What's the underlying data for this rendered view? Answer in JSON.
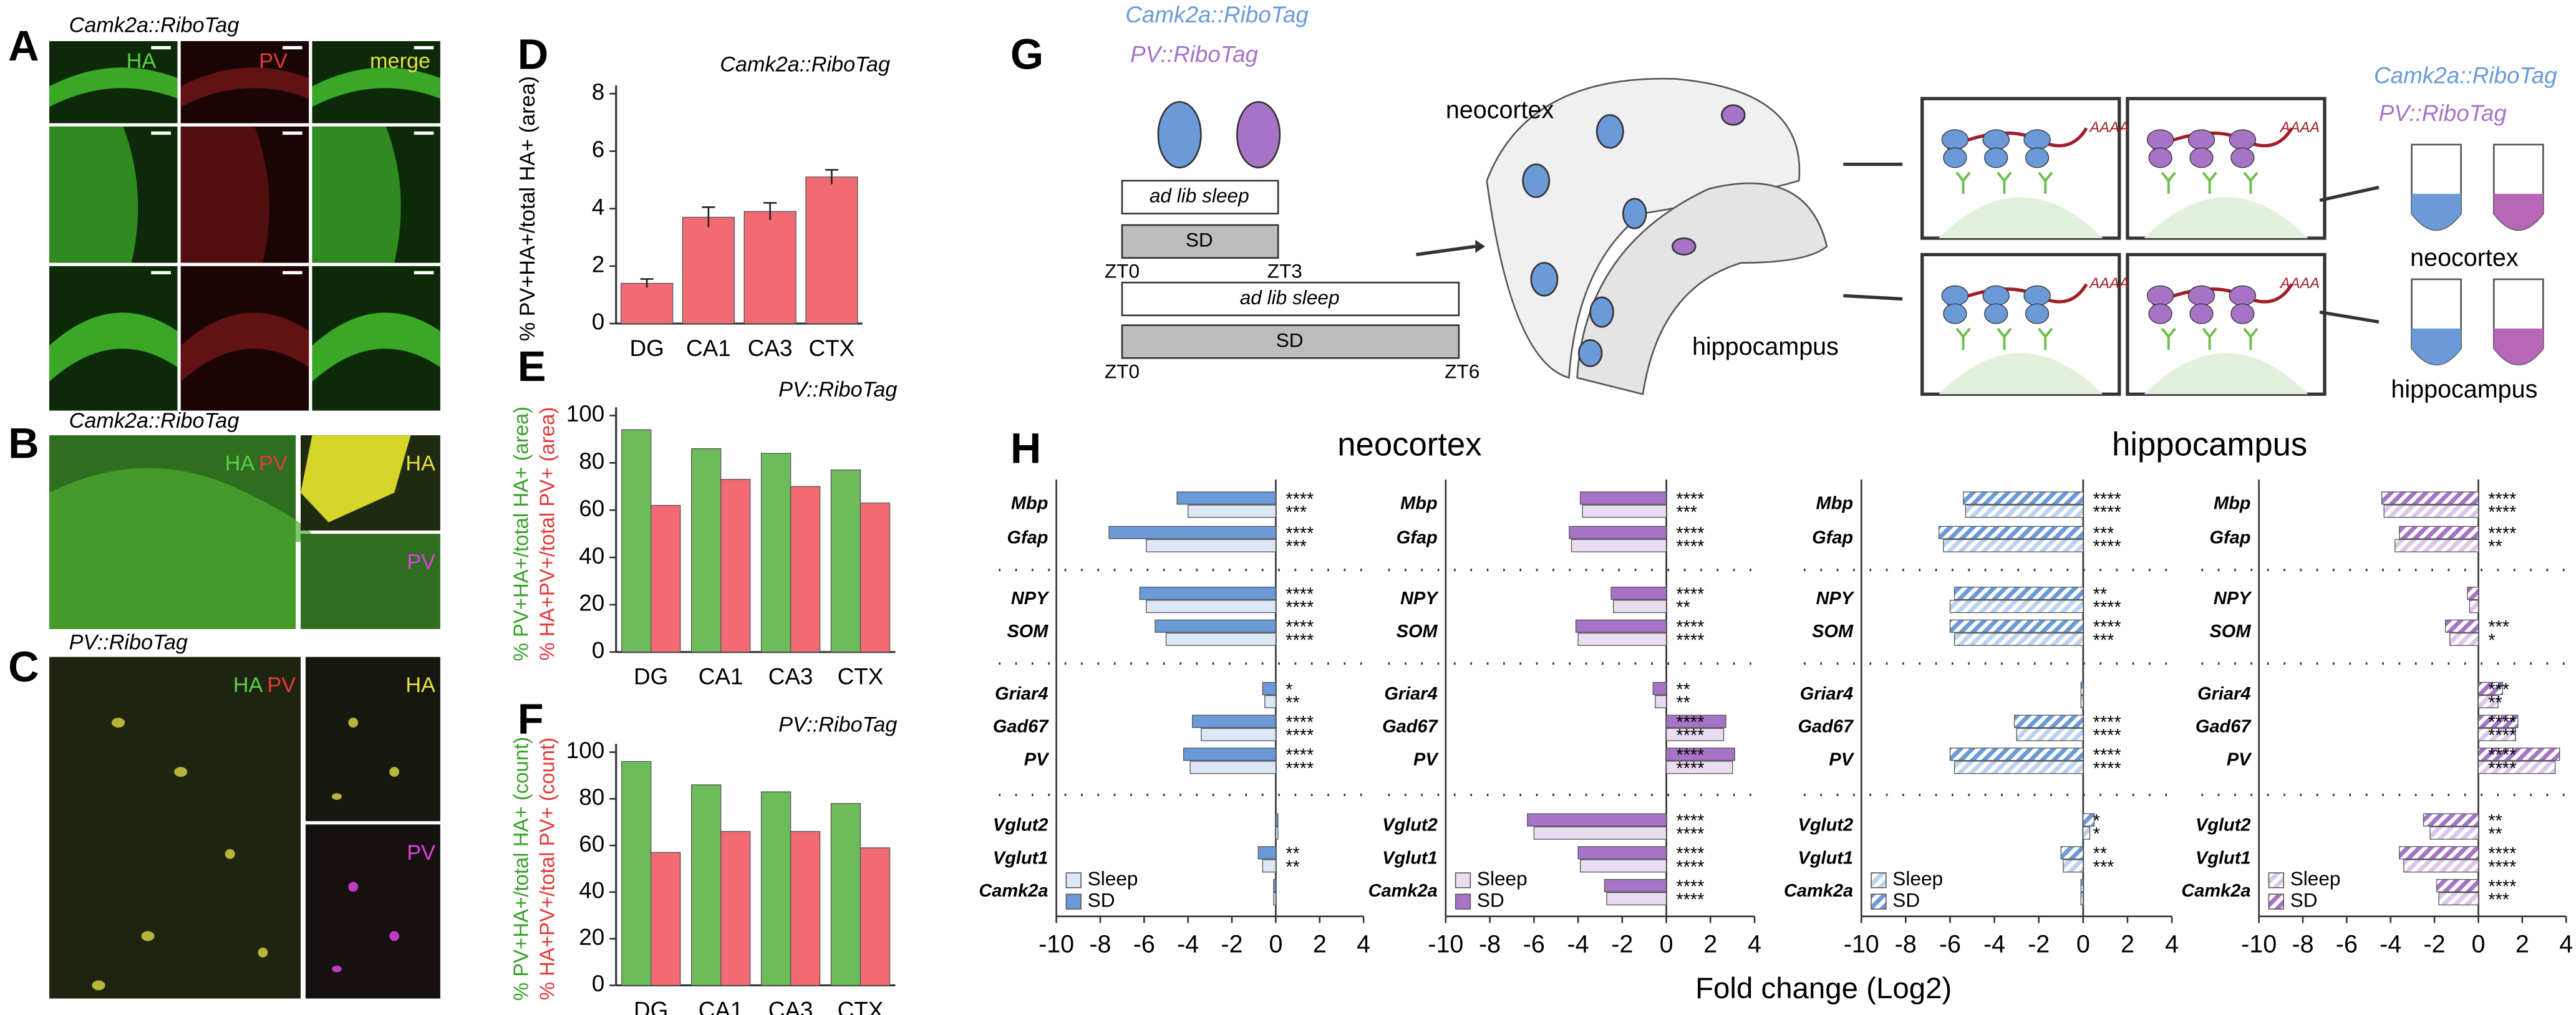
{
  "panel_letters": [
    "A",
    "B",
    "C",
    "D",
    "E",
    "F",
    "G",
    "H"
  ],
  "panel_a": {
    "title": "Camk2a::RiboTag",
    "channels": [
      "HA",
      "PV",
      "merge"
    ]
  },
  "panel_b": {
    "title": "Camk2a::RiboTag",
    "merge_labels": [
      "HA",
      "PV"
    ],
    "inset_labels": [
      "HA",
      "PV"
    ]
  },
  "panel_c": {
    "title": "PV::RiboTag",
    "merge_labels": [
      "HA",
      "PV"
    ],
    "inset_labels": [
      "HA",
      "PV"
    ]
  },
  "panel_g": {
    "mouse_labels": [
      "Camk2a::RiboTag",
      "PV::RiboTag"
    ],
    "timeline_short": {
      "sleep": "ad lib sleep",
      "sd": "SD",
      "start": "ZT0",
      "end": "ZT3"
    },
    "timeline_long": {
      "sleep": "ad lib sleep",
      "sd": "SD",
      "start": "ZT0",
      "end": "ZT6"
    },
    "brain_labels": [
      "neocortex",
      "hippocampus"
    ],
    "poly_a": [
      "AAAA",
      "AAAA",
      "AAAA",
      "AAAA"
    ],
    "tube_legend": [
      "Camk2a::RiboTag",
      "PV::RiboTag"
    ],
    "tube_labels": [
      "neocortex",
      "hippocampus"
    ]
  },
  "panel_h": {
    "x_label": "Fold change (Log2)",
    "region_titles": [
      "neocortex",
      "hippocampus"
    ]
  },
  "chart_data": [
    {
      "type": "bar",
      "title": "Camk2a::RiboTag",
      "y_label": "% PV+HA+/total HA+ (area)",
      "categories": [
        "DG",
        "CA1",
        "CA3",
        "CTX"
      ],
      "values": [
        1.4,
        3.7,
        3.9,
        5.1
      ],
      "errors": [
        0.15,
        0.35,
        0.3,
        0.25
      ],
      "color": "#f26b73",
      "ylim": [
        0,
        8
      ],
      "yticks": [
        0,
        2,
        4,
        6,
        8
      ]
    },
    {
      "type": "grouped_bar",
      "title": "PV::RiboTag",
      "categories": [
        "DG",
        "CA1",
        "CA3",
        "CTX"
      ],
      "series": [
        {
          "name": "% PV+HA+/total HA+ (area)",
          "color": "#6dbb5a",
          "values": [
            94,
            86,
            84,
            77
          ]
        },
        {
          "name": "% HA+PV+/total PV+ (area)",
          "color": "#f26b73",
          "values": [
            62,
            73,
            70,
            63
          ]
        }
      ],
      "ylim": [
        0,
        100
      ],
      "yticks": [
        0,
        20,
        40,
        60,
        80,
        100
      ]
    },
    {
      "type": "grouped_bar",
      "title": "PV::RiboTag",
      "categories": [
        "DG",
        "CA1",
        "CA3",
        "CTX"
      ],
      "series": [
        {
          "name": "% PV+HA+/total HA+ (count)",
          "color": "#6dbb5a",
          "values": [
            96,
            86,
            83,
            78
          ]
        },
        {
          "name": "% HA+PV+/total PV+ (count)",
          "color": "#f26b73",
          "values": [
            57,
            66,
            66,
            59
          ]
        }
      ],
      "ylim": [
        0,
        100
      ],
      "yticks": [
        0,
        20,
        40,
        60,
        80,
        100
      ]
    },
    {
      "type": "hbar",
      "hatch": false,
      "categories": [
        "Mbp",
        "Gfap",
        "NPY",
        "SOM",
        "Griar4",
        "Gad67",
        "PV",
        "Vglut2",
        "Vglut1",
        "Camk2a"
      ],
      "series": [
        {
          "name": "Sleep",
          "color": "#dce8f7",
          "values": [
            -4.0,
            -5.9,
            -5.9,
            -5.0,
            -0.5,
            -3.4,
            -3.9,
            0.1,
            -0.6,
            -0.1
          ],
          "significance": [
            "***",
            "***",
            "****",
            "****",
            "**",
            "****",
            "****",
            null,
            "**",
            null
          ]
        },
        {
          "name": "SD",
          "color": "#6a9ad8",
          "values": [
            -4.5,
            -7.6,
            -6.2,
            -5.5,
            -0.6,
            -3.8,
            -4.2,
            0.1,
            -0.8,
            -0.1
          ],
          "significance": [
            "****",
            "****",
            "****",
            "****",
            "*",
            "****",
            "****",
            null,
            "**",
            null
          ]
        }
      ],
      "xlim": [
        -10,
        4
      ],
      "xticks": [
        -10,
        -8,
        -6,
        -4,
        -2,
        0,
        2,
        4
      ]
    },
    {
      "type": "hbar",
      "hatch": false,
      "categories": [
        "Mbp",
        "Gfap",
        "NPY",
        "SOM",
        "Griar4",
        "Gad67",
        "PV",
        "Vglut2",
        "Vglut1",
        "Camk2a"
      ],
      "series": [
        {
          "name": "Sleep",
          "color": "#eadcf2",
          "values": [
            -3.8,
            -4.3,
            -2.4,
            -4.0,
            -0.5,
            2.6,
            3.0,
            -6.0,
            -3.9,
            -2.7
          ],
          "significance": [
            "***",
            "****",
            "**",
            "****",
            "**",
            "****",
            "****",
            "****",
            "****",
            "****"
          ]
        },
        {
          "name": "SD",
          "color": "#a673c6",
          "values": [
            -3.9,
            -4.4,
            -2.5,
            -4.1,
            -0.6,
            2.7,
            3.1,
            -6.3,
            -4.0,
            -2.8
          ],
          "significance": [
            "****",
            "****",
            "****",
            "****",
            "**",
            "****",
            "****",
            "****",
            "****",
            "****"
          ]
        }
      ],
      "xlim": [
        -10,
        4
      ],
      "xticks": [
        -10,
        -8,
        -6,
        -4,
        -2,
        0,
        2,
        4
      ]
    },
    {
      "type": "hbar",
      "hatch": true,
      "categories": [
        "Mbp",
        "Gfap",
        "NPY",
        "SOM",
        "Griar4",
        "Gad67",
        "PV",
        "Vglut2",
        "Vglut1",
        "Camk2a"
      ],
      "series": [
        {
          "name": "Sleep",
          "color": "#bcd2ef",
          "values": [
            -5.3,
            -6.3,
            -6.0,
            -5.8,
            -0.1,
            -3.0,
            -5.8,
            0.3,
            -0.9,
            -0.1
          ],
          "significance": [
            "****",
            "****",
            "****",
            "***",
            null,
            "****",
            "****",
            "*",
            "***",
            null
          ]
        },
        {
          "name": "SD",
          "color": "#6a9ad8",
          "values": [
            -5.4,
            -6.5,
            -5.8,
            -6.0,
            -0.1,
            -3.1,
            -6.0,
            0.5,
            -1.0,
            -0.1
          ],
          "significance": [
            "****",
            "***",
            "**",
            "****",
            null,
            "****",
            "****",
            "*",
            "**",
            null
          ]
        }
      ],
      "xlim": [
        -10,
        4
      ],
      "xticks": [
        -10,
        -8,
        -6,
        -4,
        -2,
        0,
        2,
        4
      ]
    },
    {
      "type": "hbar",
      "hatch": true,
      "categories": [
        "Mbp",
        "Gfap",
        "NPY",
        "SOM",
        "Griar4",
        "Gad67",
        "PV",
        "Vglut2",
        "Vglut1",
        "Camk2a"
      ],
      "series": [
        {
          "name": "Sleep",
          "color": "#dcc6ea",
          "values": [
            -4.3,
            -3.8,
            -0.4,
            -1.3,
            0.9,
            1.7,
            3.5,
            -2.2,
            -3.4,
            -1.8
          ],
          "significance": [
            "****",
            "**",
            null,
            "*",
            "**",
            "****",
            "****",
            "**",
            "****",
            "***"
          ]
        },
        {
          "name": "SD",
          "color": "#a673c6",
          "values": [
            -4.4,
            -3.6,
            -0.5,
            -1.5,
            1.1,
            1.8,
            3.7,
            -2.5,
            -3.6,
            -1.9
          ],
          "significance": [
            "****",
            "****",
            null,
            "***",
            "***",
            "****",
            "****",
            "**",
            "****",
            "****"
          ]
        }
      ],
      "xlim": [
        -10,
        4
      ],
      "xticks": [
        -10,
        -8,
        -6,
        -4,
        -2,
        0,
        2,
        4
      ]
    }
  ]
}
